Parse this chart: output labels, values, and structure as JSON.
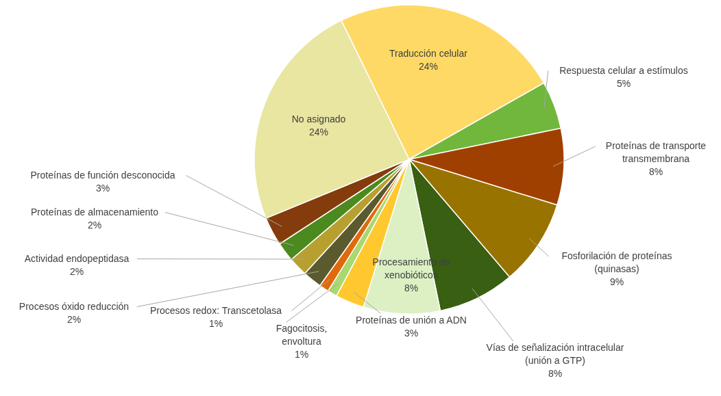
{
  "chart_data": {
    "type": "pie",
    "value_labels": [
      "24%",
      "5%",
      "8%",
      "9%",
      "8%",
      "8%",
      "3%",
      "1%",
      "1%",
      "2%",
      "2%",
      "2%",
      "3%",
      "24%"
    ],
    "categories": [
      "Traducción celular",
      "Respuesta celular a estímulos",
      "Proteínas de transporte transmembrana",
      "Fosforilación de proteínas (quinasas)",
      "Vías de señalización intracelular (unión a GTP)",
      "Procesamiento de xenobióticos",
      "Proteínas de unión a ADN",
      "Fagocitosis, envoltura",
      "Procesos redox: Transcetolasa",
      "Procesos óxido reducción",
      "Actividad endopeptidasa",
      "Proteínas de almacenamiento",
      "Proteínas de función desconocida",
      "No asignado"
    ],
    "values": [
      24,
      5,
      8,
      9,
      8,
      8,
      3,
      1,
      1,
      2,
      2,
      2,
      3,
      24
    ],
    "colors": [
      "#ffd966",
      "#70b73b",
      "#a04000",
      "#997300",
      "#385f12",
      "#dcf0c4",
      "#ffc82e",
      "#a9d86e",
      "#e2690a",
      "#5a5a2e",
      "#b8a030",
      "#4b8a1e",
      "#843c0c",
      "#e8e6a0"
    ]
  }
}
